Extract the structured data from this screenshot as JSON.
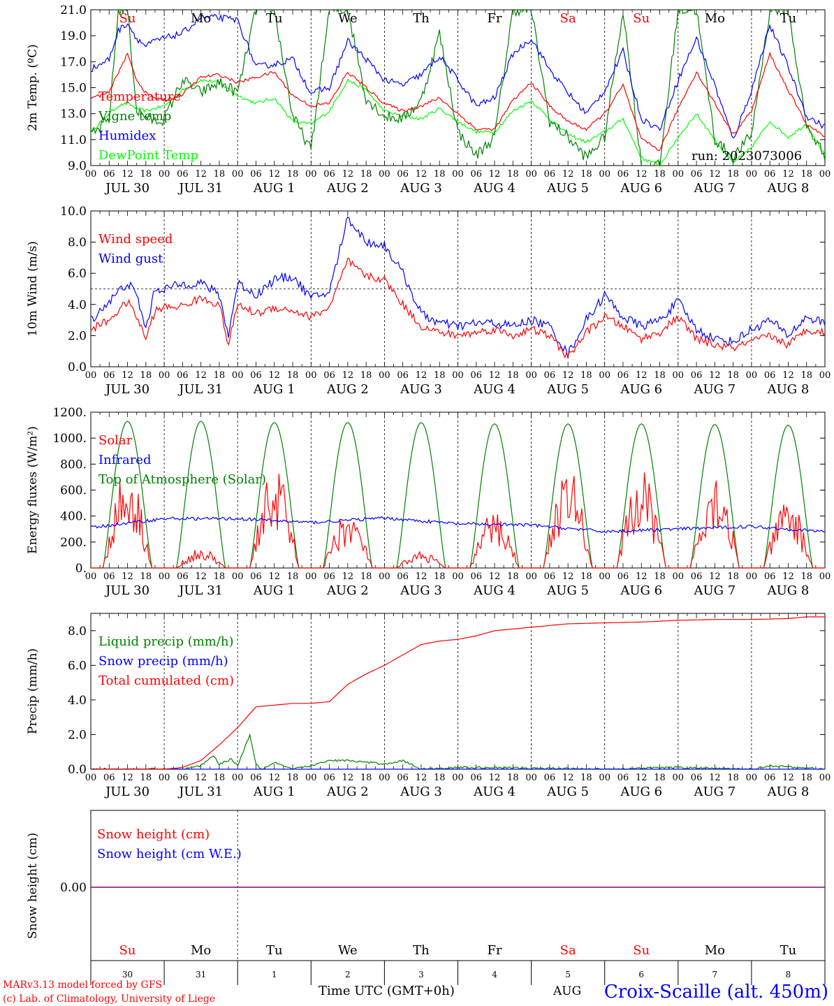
{
  "days": {
    "date_labels": [
      "JUL 30",
      "JUL 31",
      "AUG  1",
      "AUG  2",
      "AUG  3",
      "AUG  4",
      "AUG  5",
      "AUG  6",
      "AUG  7",
      "AUG  8"
    ],
    "weekday_labels": [
      "Su",
      "Mo",
      "Tu",
      "We",
      "Th",
      "Fr",
      "Sa",
      "Su",
      "Mo",
      "Tu"
    ],
    "weekday_colors": [
      "#ff0000",
      "#000000",
      "#000000",
      "#000000",
      "#000000",
      "#000000",
      "#ff0000",
      "#ff0000",
      "#000000",
      "#000000"
    ],
    "day_numbers": [
      "30",
      "31",
      "1",
      "2",
      "3",
      "4",
      "5",
      "6",
      "7",
      "8"
    ],
    "hour_ticks": [
      "00",
      "06",
      "12",
      "18"
    ],
    "month_label": "AUG"
  },
  "footer": {
    "credit_line1": "MARv3.13 model forced by GFS",
    "credit_line2": "(c) Lab. of Climatology, University of Liege",
    "time_axis_label": "Time UTC (GMT+0h)",
    "station": "Croix-Scaille (alt. 450m)"
  },
  "colors": {
    "red": "#ff0000",
    "blue": "#0000ff",
    "dark_green": "#008000",
    "light_green": "#00ff00",
    "purple": "#7f007f"
  },
  "chart_data": [
    {
      "type": "line",
      "title": "",
      "ylabel": "2m Temp. (ºC)",
      "ylim": [
        9,
        21
      ],
      "yticks": [
        "9.0",
        "11.0",
        "13.0",
        "15.0",
        "17.0",
        "19.0",
        "21.0"
      ],
      "run_label": "run: 2023073006",
      "x_unit": "hours since JUL 30 00 UTC",
      "series": [
        {
          "name": "Temperature",
          "color": "#ff0000",
          "x": [
            0,
            6,
            9,
            12,
            15,
            18,
            21,
            24,
            30,
            36,
            42,
            48,
            54,
            60,
            66,
            72,
            78,
            84,
            90,
            96,
            102,
            108,
            114,
            120,
            126,
            132,
            138,
            144,
            150,
            156,
            162,
            168,
            174,
            180,
            186,
            192,
            198,
            204,
            210,
            216,
            222,
            228,
            234,
            240
          ],
          "y": [
            14.2,
            14.6,
            16.2,
            17.6,
            15.6,
            14.6,
            14.2,
            14.0,
            14.5,
            15.8,
            16.0,
            15.4,
            15.8,
            16.2,
            14.4,
            13.6,
            13.8,
            16.2,
            15.0,
            13.8,
            13.2,
            13.6,
            14.2,
            13.0,
            11.8,
            11.8,
            14.0,
            15.4,
            13.6,
            12.4,
            11.8,
            13.0,
            15.2,
            11.0,
            10.2,
            13.4,
            16.2,
            13.8,
            11.4,
            13.2,
            17.6,
            14.8,
            12.2,
            11.2
          ]
        },
        {
          "name": "Vigne temp",
          "color": "#008000",
          "x": [
            0,
            6,
            9,
            12,
            15,
            18,
            21,
            24,
            30,
            36,
            42,
            48,
            54,
            60,
            66,
            72,
            78,
            84,
            90,
            96,
            102,
            108,
            114,
            120,
            126,
            132,
            138,
            144,
            150,
            156,
            162,
            168,
            174,
            180,
            186,
            192,
            198,
            204,
            210,
            216,
            222,
            228,
            234,
            240
          ],
          "y": [
            11.2,
            12.6,
            21.0,
            21.0,
            13.2,
            12.8,
            12.4,
            12.6,
            15.6,
            14.6,
            15.4,
            14.6,
            21.0,
            21.0,
            12.8,
            10.2,
            21.0,
            21.0,
            14.2,
            12.8,
            12.6,
            14.0,
            19.2,
            11.6,
            9.8,
            11.2,
            21.0,
            21.0,
            12.4,
            11.2,
            9.6,
            11.2,
            21.0,
            9.0,
            9.0,
            21.0,
            21.0,
            11.0,
            9.6,
            11.4,
            21.0,
            21.0,
            12.0,
            9.8
          ]
        },
        {
          "name": "Humidex",
          "color": "#0000ff",
          "x": [
            0,
            6,
            9,
            12,
            15,
            18,
            21,
            24,
            30,
            36,
            42,
            48,
            54,
            60,
            66,
            72,
            78,
            84,
            90,
            96,
            102,
            108,
            114,
            120,
            126,
            132,
            138,
            144,
            150,
            156,
            162,
            168,
            174,
            180,
            186,
            192,
            198,
            204,
            210,
            216,
            222,
            228,
            234,
            240
          ],
          "y": [
            16.4,
            17.2,
            19.4,
            20.0,
            18.8,
            18.2,
            18.6,
            18.8,
            19.2,
            20.4,
            20.4,
            20.2,
            16.6,
            16.8,
            17.2,
            14.6,
            15.0,
            18.6,
            17.2,
            15.6,
            15.2,
            16.0,
            17.4,
            15.6,
            13.6,
            14.2,
            17.6,
            18.8,
            16.4,
            14.6,
            13.0,
            14.8,
            17.8,
            12.6,
            11.8,
            15.6,
            18.8,
            15.2,
            11.0,
            14.8,
            19.8,
            16.6,
            12.8,
            12.0
          ]
        },
        {
          "name": "DewPoint Temp",
          "color": "#00ff00",
          "x": [
            0,
            6,
            9,
            12,
            15,
            18,
            21,
            24,
            30,
            36,
            42,
            48,
            54,
            60,
            66,
            72,
            78,
            84,
            90,
            96,
            102,
            108,
            114,
            120,
            126,
            132,
            138,
            144,
            150,
            156,
            162,
            168,
            174,
            180,
            186,
            192,
            198,
            204,
            210,
            216,
            222,
            228,
            234,
            240
          ],
          "y": [
            11.6,
            13.0,
            13.6,
            13.8,
            13.4,
            13.2,
            13.4,
            13.6,
            14.8,
            15.6,
            15.4,
            14.4,
            13.8,
            14.2,
            12.4,
            12.2,
            13.2,
            15.6,
            14.8,
            13.2,
            12.8,
            12.6,
            13.4,
            12.4,
            11.6,
            11.6,
            13.2,
            14.0,
            12.6,
            11.4,
            10.8,
            11.6,
            12.6,
            9.6,
            9.0,
            11.2,
            13.0,
            11.0,
            9.2,
            10.4,
            12.4,
            11.2,
            12.2,
            9.8
          ]
        }
      ]
    },
    {
      "type": "line",
      "title": "",
      "ylabel": "10m Wind (m/s)",
      "ylim": [
        0,
        10
      ],
      "yticks": [
        "0.0",
        "2.0",
        "4.0",
        "6.0",
        "8.0",
        "10.0"
      ],
      "reference_line": 5,
      "x_unit": "hours since JUL 30 00 UTC",
      "series": [
        {
          "name": "Wind speed",
          "color": "#ff0000",
          "x": [
            0,
            6,
            12,
            15,
            18,
            21,
            24,
            30,
            36,
            42,
            45,
            48,
            54,
            60,
            66,
            72,
            78,
            84,
            90,
            96,
            102,
            108,
            114,
            120,
            126,
            132,
            138,
            144,
            150,
            156,
            162,
            168,
            174,
            180,
            186,
            192,
            198,
            204,
            210,
            216,
            222,
            228,
            234,
            240
          ],
          "y": [
            2.4,
            3.0,
            4.2,
            3.2,
            1.8,
            3.6,
            3.8,
            3.9,
            4.4,
            4.0,
            1.4,
            4.0,
            3.4,
            3.8,
            3.6,
            3.2,
            3.8,
            6.8,
            5.8,
            5.6,
            4.0,
            2.6,
            2.2,
            2.0,
            2.2,
            2.4,
            2.0,
            2.4,
            2.0,
            0.6,
            2.2,
            3.2,
            2.6,
            1.8,
            2.2,
            3.2,
            1.8,
            1.4,
            1.2,
            1.6,
            2.0,
            1.4,
            2.4,
            2.2
          ]
        },
        {
          "name": "Wind gust",
          "color": "#0000ff",
          "x": [
            0,
            6,
            12,
            15,
            18,
            21,
            24,
            30,
            36,
            42,
            45,
            48,
            54,
            60,
            66,
            72,
            78,
            84,
            90,
            96,
            102,
            108,
            114,
            120,
            126,
            132,
            138,
            144,
            150,
            156,
            162,
            168,
            174,
            180,
            186,
            192,
            198,
            204,
            210,
            216,
            222,
            228,
            234,
            240
          ],
          "y": [
            3.0,
            4.2,
            5.4,
            4.6,
            2.4,
            5.0,
            5.0,
            5.3,
            5.4,
            4.6,
            2.0,
            5.4,
            4.6,
            5.6,
            5.8,
            4.4,
            4.8,
            9.6,
            8.0,
            7.8,
            6.0,
            3.4,
            2.8,
            2.6,
            2.8,
            2.8,
            2.6,
            3.0,
            2.6,
            0.8,
            3.0,
            4.6,
            3.2,
            2.6,
            3.0,
            4.2,
            2.4,
            1.8,
            1.6,
            2.4,
            3.0,
            2.0,
            3.2,
            2.8
          ]
        }
      ]
    },
    {
      "type": "line",
      "title": "",
      "ylabel": "Energy fluxes (W/m²)",
      "ylim": [
        0,
        1200
      ],
      "yticks": [
        "0.",
        "200.",
        "400.",
        "600.",
        "800.",
        "1000.",
        "1200."
      ],
      "x_unit": "hours since JUL 30 00 UTC",
      "series": [
        {
          "name": "Solar",
          "color": "#ff0000",
          "day_peaks": [
            780,
            150,
            780,
            450,
            130,
            450,
            780,
            750,
            790,
            540
          ]
        },
        {
          "name": "Infrared",
          "color": "#0000ff",
          "x": [
            0,
            24,
            48,
            72,
            96,
            120,
            144,
            168,
            192,
            216,
            240
          ],
          "y": [
            310,
            380,
            380,
            350,
            385,
            340,
            330,
            280,
            300,
            320,
            280
          ]
        },
        {
          "name": "Top of Atmosphere (Solar)",
          "color": "#008000",
          "day_peaks": [
            1130,
            1130,
            1120,
            1120,
            1120,
            1110,
            1110,
            1110,
            1105,
            1100
          ],
          "sunrise_hour": 4,
          "sunset_hour": 20
        }
      ]
    },
    {
      "type": "line",
      "title": "",
      "ylabel": "Precip (mm/h)",
      "ylim": [
        0,
        9
      ],
      "yticks": [
        "0.0",
        "2.0",
        "4.0",
        "6.0",
        "8.0"
      ],
      "x_unit": "hours since JUL 30 00 UTC",
      "series": [
        {
          "name": "Liquid precip (mm/h)",
          "color": "#008000",
          "x": [
            0,
            30,
            36,
            40,
            42,
            46,
            48,
            52,
            54,
            56,
            60,
            66,
            72,
            78,
            84,
            90,
            96,
            102,
            108,
            120,
            132,
            144,
            168,
            192,
            210,
            216,
            222,
            240
          ],
          "y": [
            0,
            0,
            0.2,
            0.8,
            0.3,
            0.6,
            0.2,
            2.0,
            0.3,
            0,
            0.4,
            0,
            0.2,
            0.5,
            0.5,
            0.4,
            0.3,
            0.5,
            0,
            0.1,
            0.1,
            0.05,
            0,
            0.1,
            0,
            0,
            0.2,
            0
          ]
        },
        {
          "name": "Snow precip (mm/h)",
          "color": "#0000ff",
          "x": [
            0,
            240
          ],
          "y": [
            0,
            0
          ]
        },
        {
          "name": "Total cumulated (cm)",
          "color": "#ff0000",
          "x": [
            0,
            24,
            30,
            36,
            42,
            48,
            54,
            60,
            66,
            72,
            78,
            84,
            90,
            96,
            102,
            108,
            114,
            120,
            126,
            132,
            144,
            156,
            168,
            180,
            192,
            204,
            216,
            228,
            234,
            240
          ],
          "y": [
            0,
            0,
            0.1,
            0.5,
            1.4,
            2.4,
            3.6,
            3.7,
            3.8,
            3.8,
            3.9,
            4.9,
            5.5,
            6.0,
            6.6,
            7.2,
            7.4,
            7.5,
            7.7,
            8.0,
            8.2,
            8.4,
            8.45,
            8.5,
            8.6,
            8.65,
            8.65,
            8.7,
            8.8,
            8.8
          ]
        }
      ]
    },
    {
      "type": "line",
      "title": "",
      "ylabel": "Snow height (cm)",
      "yticks": [
        "0.00"
      ],
      "x_unit": "hours since JUL 30 00 UTC",
      "series": [
        {
          "name": "Snow height (cm)",
          "color": "#ff0000",
          "x": [
            0,
            240
          ],
          "y": [
            0,
            0
          ]
        },
        {
          "name": "Snow height (cm W.E.)",
          "color": "#0000ff",
          "x": [
            0,
            240
          ],
          "y": [
            0,
            0
          ]
        }
      ]
    }
  ]
}
